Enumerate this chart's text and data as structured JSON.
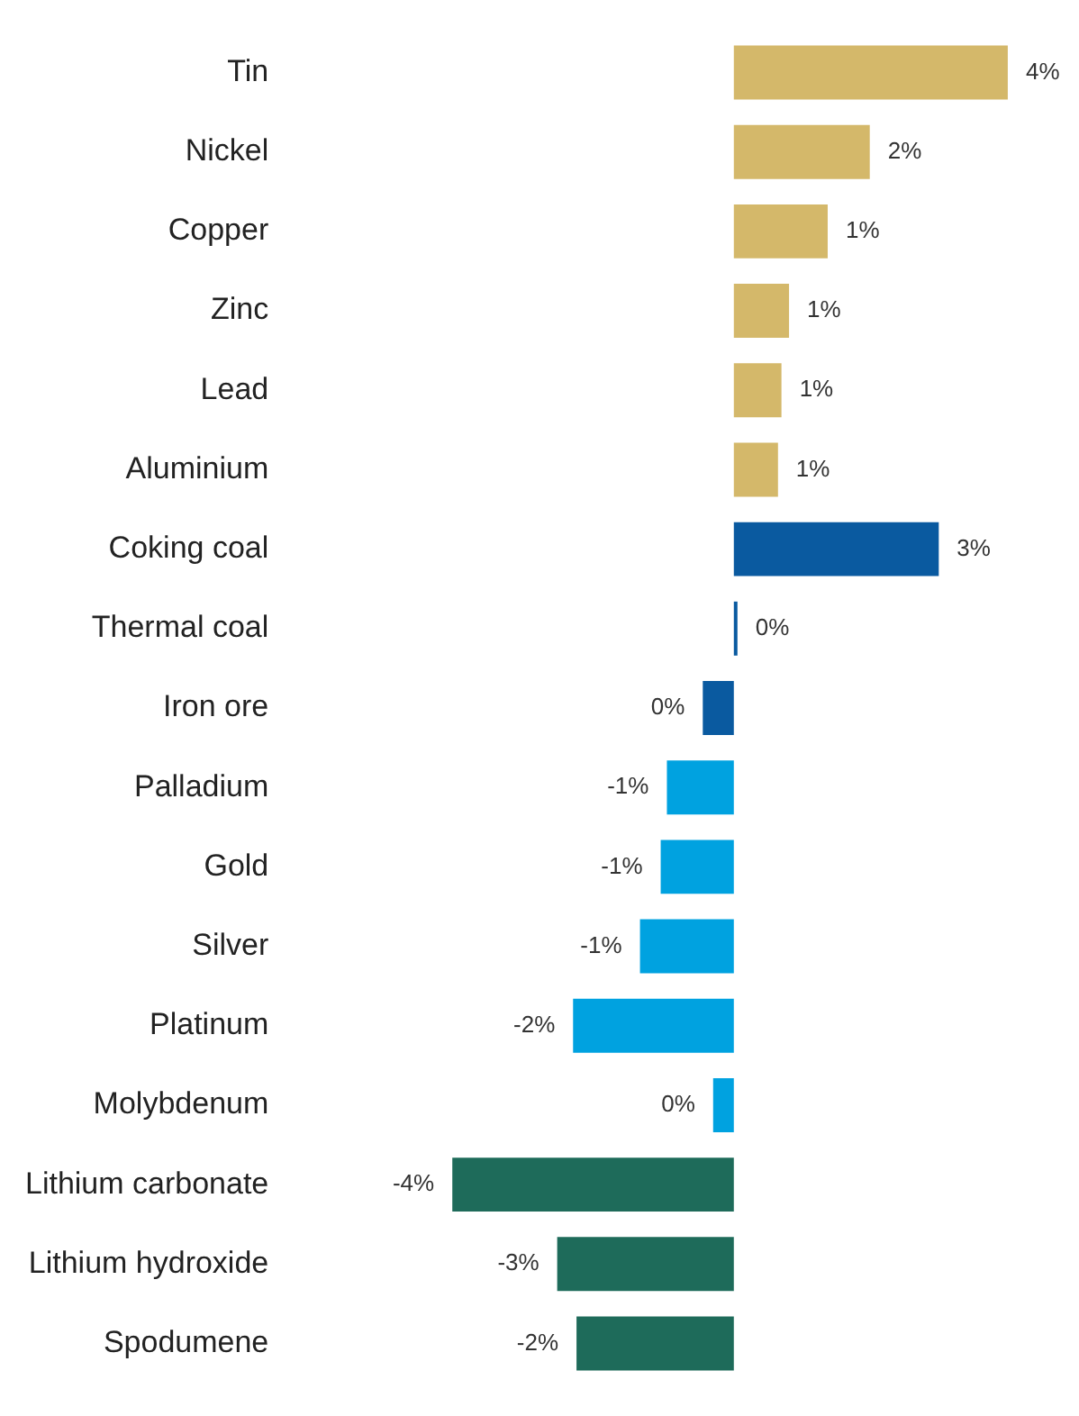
{
  "chart_data": {
    "type": "bar",
    "orientation": "horizontal",
    "categories": [
      "Tin",
      "Nickel",
      "Copper",
      "Zinc",
      "Lead",
      "Aluminium",
      "Coking coal",
      "Thermal coal",
      "Iron ore",
      "Palladium",
      "Gold",
      "Silver",
      "Platinum",
      "Molybdenum",
      "Lithium carbonate",
      "Lithium hydroxide",
      "Spodumene"
    ],
    "values": [
      3.97,
      1.97,
      1.36,
      0.8,
      0.69,
      0.64,
      2.97,
      0.05,
      -0.45,
      -0.97,
      -1.06,
      -1.36,
      -2.33,
      -0.3,
      -4.08,
      -2.56,
      -2.28
    ],
    "value_labels": [
      "4%",
      "2%",
      "1%",
      "1%",
      "1%",
      "1%",
      "3%",
      "0%",
      "0%",
      "-1%",
      "-1%",
      "-1%",
      "-2%",
      "0%",
      "-4%",
      "-3%",
      "-2%"
    ],
    "colors": [
      "#d4b86a",
      "#d4b86a",
      "#d4b86a",
      "#d4b86a",
      "#d4b86a",
      "#d4b86a",
      "#0a5aa0",
      "#0a5aa0",
      "#0a5aa0",
      "#00a2e0",
      "#00a2e0",
      "#00a2e0",
      "#00a2e0",
      "#00a2e0",
      "#1e6b5a",
      "#1e6b5a",
      "#1e6b5a"
    ],
    "legend": false
  }
}
